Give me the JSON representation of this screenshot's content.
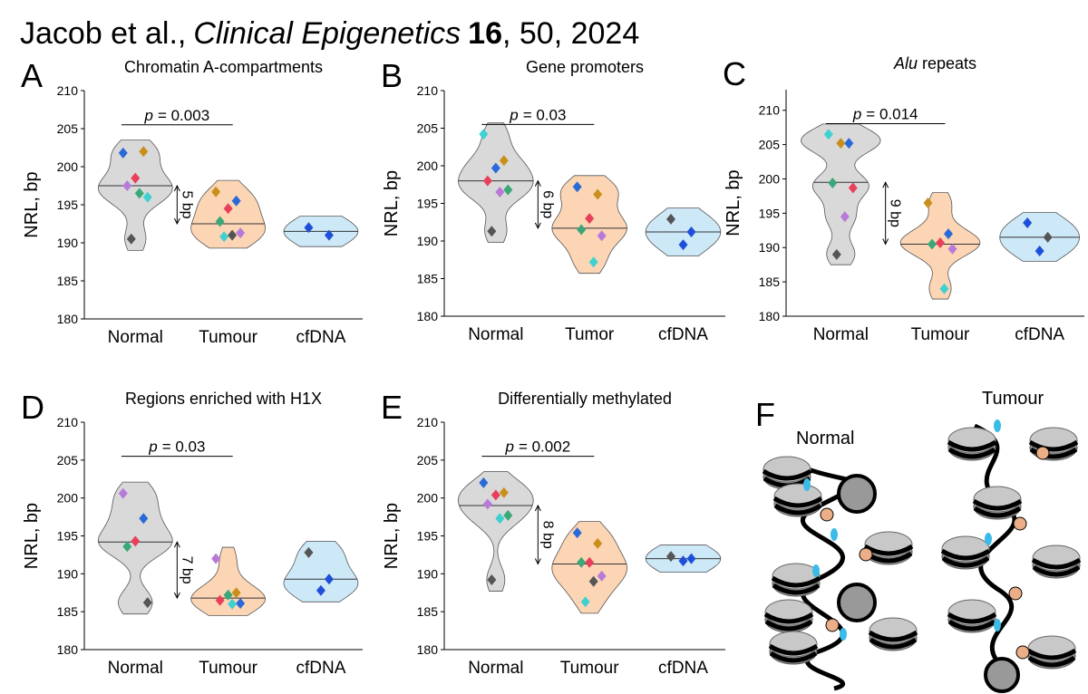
{
  "header": {
    "authors": "Jacob et al.,",
    "journal": "Clinical Epigenetics",
    "volume": "16",
    "rest": ", 50, 2024"
  },
  "chart_data": [
    {
      "type": "violin",
      "panel": "A",
      "title": "Chromatin A-compartments",
      "ylabel": "NRL, bp",
      "categories": [
        "Normal",
        "Tumour",
        "cfDNA"
      ],
      "group_colors": [
        "#d9d9d9",
        "#fcd5b5",
        "#cde8f7"
      ],
      "ylim": [
        180,
        210
      ],
      "yticks": [
        180,
        185,
        190,
        195,
        200,
        205,
        210
      ],
      "points": [
        [
          201.8,
          202,
          198.5,
          197.5,
          196,
          196.5,
          190.5
        ],
        [
          196.7,
          195.5,
          194.5,
          192.8,
          191.3,
          191,
          190.8
        ],
        [
          192,
          191
        ]
      ],
      "point_colors": [
        [
          "#2a6ad8",
          "#c8901a",
          "#e8405a",
          "#b87ad8",
          "#40d0d0",
          "#3aa878",
          "#555555"
        ],
        [
          "#c8901a",
          "#2a6ad8",
          "#e8405a",
          "#3aa878",
          "#b87ad8",
          "#555555",
          "#40d0d0"
        ],
        [
          "#1f4fd8",
          "#1f4fd8"
        ]
      ],
      "medians": [
        197.5,
        192.5,
        191.5
      ],
      "p_symbol": "p",
      "p_text": "= 0.003",
      "difference": "5 bp"
    },
    {
      "type": "violin",
      "panel": "B",
      "title": "Gene promoters",
      "ylabel": "NRL, bp",
      "categories": [
        "Normal",
        "Tumor",
        "cfDNA"
      ],
      "group_colors": [
        "#d9d9d9",
        "#fcd5b5",
        "#cde8f7"
      ],
      "ylim": [
        180,
        210
      ],
      "yticks": [
        180,
        185,
        190,
        195,
        200,
        205,
        210
      ],
      "points": [
        [
          204.2,
          200.7,
          199.7,
          198,
          196.8,
          196.5,
          191.3
        ],
        [
          197.2,
          196.2,
          193,
          191.5,
          190.7,
          187.2
        ],
        [
          192.9,
          191.2,
          189.5
        ]
      ],
      "point_colors": [
        [
          "#40d0d0",
          "#c8901a",
          "#2a6ad8",
          "#e8405a",
          "#3aa878",
          "#b87ad8",
          "#555555"
        ],
        [
          "#2a6ad8",
          "#c8901a",
          "#e8405a",
          "#3aa878",
          "#b87ad8",
          "#40d0d0"
        ],
        [
          "#555555",
          "#1f4fd8",
          "#1f4fd8"
        ]
      ],
      "medians": [
        198,
        191.7,
        191.2
      ],
      "p_symbol": "p",
      "p_text": "= 0.03",
      "difference": "6 bp"
    },
    {
      "type": "violin",
      "panel": "C",
      "title_italic": "Alu",
      "title_rest": "repeats",
      "ylabel": "NRL, bp",
      "categories": [
        "Normal",
        "Tumour",
        "cfDNA"
      ],
      "group_colors": [
        "#d9d9d9",
        "#fcd5b5",
        "#cde8f7"
      ],
      "ylim": [
        180,
        213
      ],
      "yticks": [
        180,
        185,
        190,
        195,
        200,
        205,
        210
      ],
      "points": [
        [
          206.5,
          205.2,
          205.2,
          199.4,
          198.7,
          194.5,
          189
        ],
        [
          196.5,
          192,
          190.7,
          190.5,
          189.8,
          184
        ],
        [
          193.6,
          191.5,
          189.5
        ]
      ],
      "point_colors": [
        [
          "#40d0d0",
          "#2a6ad8",
          "#c8901a",
          "#3aa878",
          "#e8405a",
          "#b87ad8",
          "#555555"
        ],
        [
          "#c8901a",
          "#2a6ad8",
          "#e8405a",
          "#3aa878",
          "#b87ad8",
          "#40d0d0"
        ],
        [
          "#1f4fd8",
          "#555555",
          "#1f4fd8"
        ]
      ],
      "medians": [
        199.5,
        190.5,
        191.5
      ],
      "p_symbol": "p",
      "p_text": "= 0.014",
      "difference": "9 bp"
    },
    {
      "type": "violin",
      "panel": "D",
      "title": "Regions enriched with H1X",
      "ylabel": "NRL, bp",
      "categories": [
        "Normal",
        "Tumour",
        "cfDNA"
      ],
      "group_colors": [
        "#d9d9d9",
        "#fcd5b5",
        "#cde8f7"
      ],
      "ylim": [
        180,
        210
      ],
      "yticks": [
        180,
        185,
        190,
        195,
        200,
        205,
        210
      ],
      "points": [
        [
          200.6,
          197.3,
          194.3,
          193.6,
          186.2
        ],
        [
          192,
          187.5,
          187.2,
          186.5,
          186.1,
          186
        ],
        [
          192.8,
          189.3,
          187.8
        ]
      ],
      "point_colors": [
        [
          "#b87ad8",
          "#2a6ad8",
          "#e8405a",
          "#3aa878",
          "#555555"
        ],
        [
          "#b87ad8",
          "#c8901a",
          "#3aa878",
          "#e8405a",
          "#2a6ad8",
          "#40d0d0"
        ],
        [
          "#555555",
          "#1f4fd8",
          "#1f4fd8"
        ]
      ],
      "medians": [
        194.2,
        186.8,
        189.3
      ],
      "p_symbol": "p",
      "p_text": "= 0.03",
      "difference": "7 bp"
    },
    {
      "type": "violin",
      "panel": "E",
      "title": "Differentially methylated",
      "ylabel": "NRL, bp",
      "categories": [
        "Normal",
        "Tumour",
        "cfDNA"
      ],
      "group_colors": [
        "#d9d9d9",
        "#fcd5b5",
        "#cde8f7"
      ],
      "ylim": [
        180,
        210
      ],
      "yticks": [
        180,
        185,
        190,
        195,
        200,
        205,
        210
      ],
      "points": [
        [
          202,
          200.7,
          200.4,
          199.2,
          197.7,
          197.3,
          189.2
        ],
        [
          195.4,
          194,
          191.5,
          191.5,
          189.7,
          189,
          186.3
        ],
        [
          192.3,
          192,
          191.7
        ]
      ],
      "point_colors": [
        [
          "#2a6ad8",
          "#c8901a",
          "#e8405a",
          "#b87ad8",
          "#3aa878",
          "#40d0d0",
          "#555555"
        ],
        [
          "#2a6ad8",
          "#c8901a",
          "#e8405a",
          "#3aa878",
          "#b87ad8",
          "#555555",
          "#40d0d0"
        ],
        [
          "#555555",
          "#1f4fd8",
          "#1f4fd8"
        ]
      ],
      "medians": [
        199,
        191.3,
        192
      ],
      "p_symbol": "p",
      "p_text": "= 0.002",
      "difference": "8 bp"
    }
  ],
  "diagram": {
    "panel": "F",
    "labels": [
      "Normal",
      "Tumour"
    ]
  }
}
